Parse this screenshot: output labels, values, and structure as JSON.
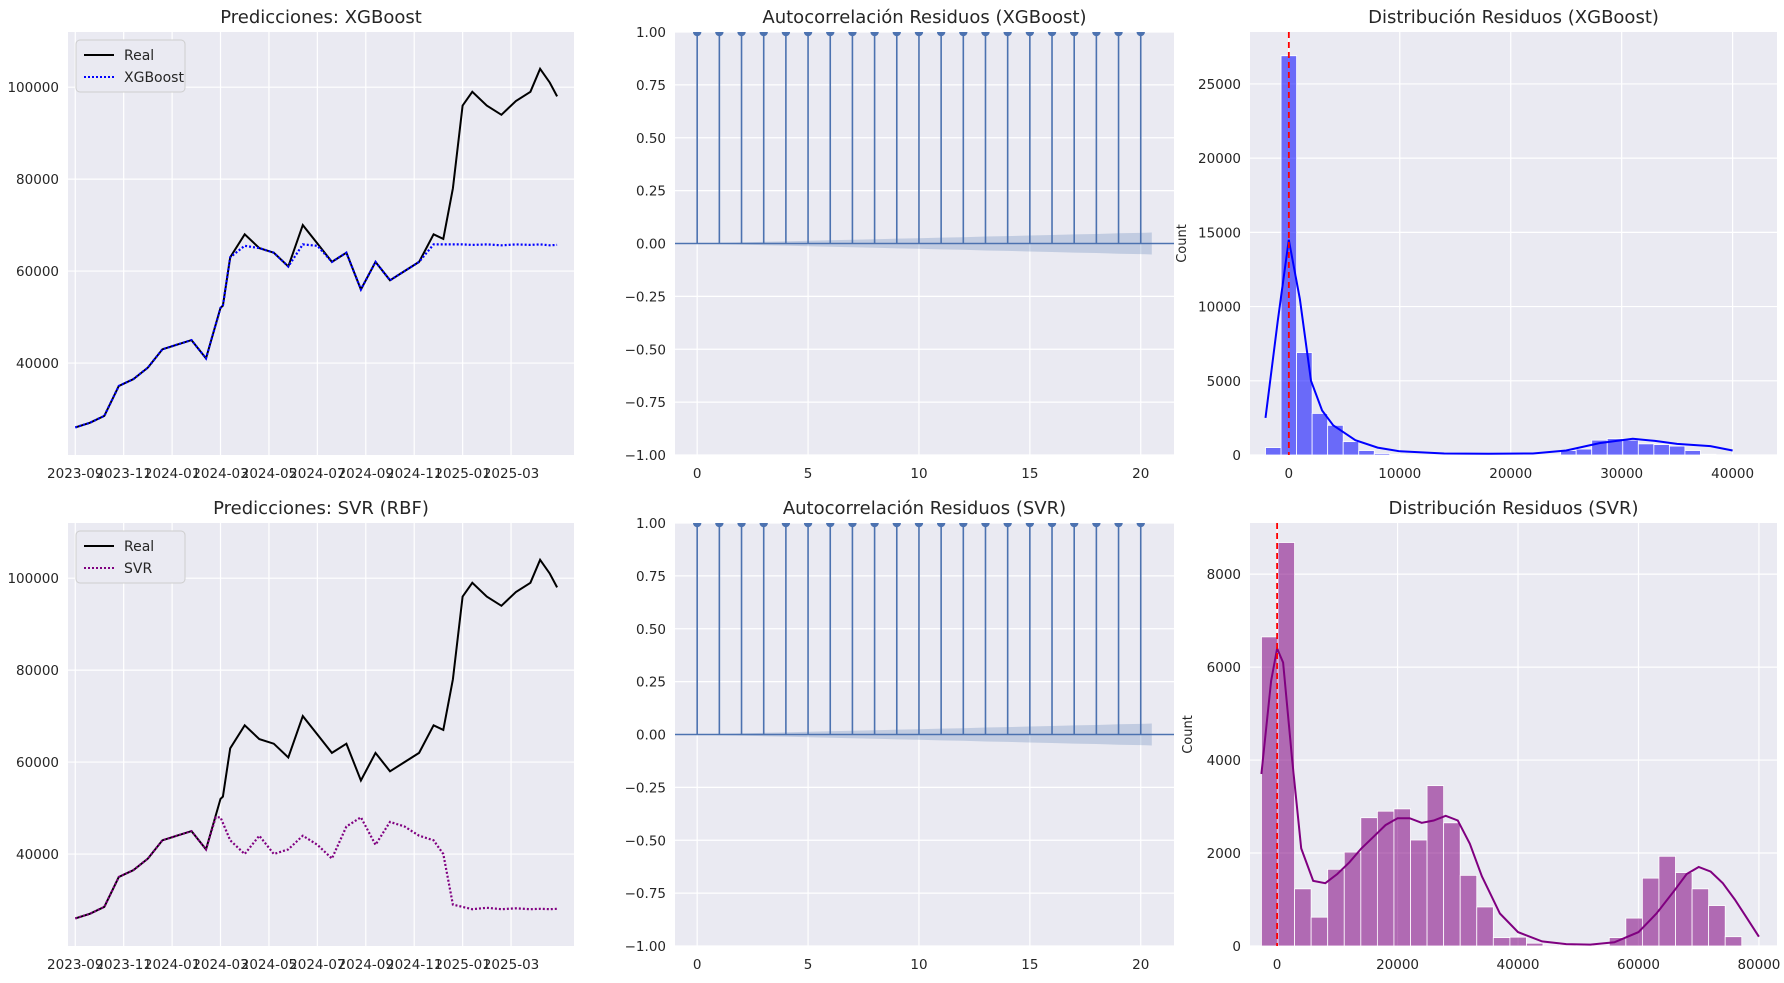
{
  "colors": {
    "panel_bg": "#eaeaf2",
    "grid": "#ffffff",
    "real": "#000000",
    "xgb": "#0000ff",
    "svr": "#800080",
    "acf": "#4c72b0",
    "zero_line": "#ff0000"
  },
  "chart_data": [
    {
      "id": "pred_xgb",
      "type": "line",
      "title": "Predicciones: XGBoost",
      "x_tick_labels": [
        "2023-09",
        "2023-11",
        "2024-01",
        "2024-03",
        "2024-05",
        "2024-07",
        "2024-09",
        "2024-11",
        "2025-01",
        "2025-03"
      ],
      "xlim": [
        -0.15,
        10.3
      ],
      "ylim": [
        20000,
        112000
      ],
      "y_ticks": [
        40000,
        60000,
        80000,
        100000
      ],
      "legend": [
        "Real",
        "XGBoost"
      ],
      "legend_loc": "upper left",
      "series": [
        {
          "name": "Real",
          "role": "real",
          "x": [
            0.0,
            0.3,
            0.6,
            0.9,
            1.2,
            1.5,
            1.8,
            2.1,
            2.4,
            2.7,
            3.0,
            3.05,
            3.2,
            3.5,
            3.8,
            4.1,
            4.4,
            4.7,
            5.0,
            5.3,
            5.6,
            5.9,
            6.2,
            6.5,
            6.8,
            7.1,
            7.4,
            7.6,
            7.8,
            8.0,
            8.2,
            8.5,
            8.8,
            9.1,
            9.4,
            9.6,
            9.8,
            9.95
          ],
          "y": [
            26000,
            27000,
            28500,
            35000,
            36500,
            39000,
            43000,
            44000,
            45000,
            41000,
            52000,
            52500,
            63000,
            68000,
            65000,
            64000,
            61000,
            70000,
            66000,
            62000,
            64000,
            56000,
            62000,
            58000,
            60000,
            62000,
            68000,
            67000,
            78000,
            96000,
            99000,
            96000,
            94000,
            97000,
            99000,
            104000,
            101000,
            98000
          ]
        },
        {
          "name": "XGBoost",
          "role": "pred",
          "x": [
            0.0,
            0.3,
            0.6,
            0.9,
            1.2,
            1.5,
            1.8,
            2.1,
            2.4,
            2.7,
            3.0,
            3.05,
            3.2,
            3.5,
            3.8,
            4.1,
            4.4,
            4.7,
            5.0,
            5.3,
            5.6,
            5.9,
            6.2,
            6.5,
            6.8,
            7.1,
            7.4,
            7.6,
            7.8,
            8.0,
            8.2,
            8.5,
            8.8,
            9.1,
            9.4,
            9.6,
            9.8,
            9.95
          ],
          "y": [
            26000,
            27000,
            28500,
            35000,
            36500,
            39000,
            43000,
            44000,
            45000,
            41000,
            52000,
            52500,
            63000,
            65500,
            65000,
            64000,
            61000,
            65800,
            65500,
            62000,
            64000,
            56000,
            62000,
            58000,
            60000,
            62000,
            65800,
            65800,
            65800,
            65800,
            65700,
            65800,
            65600,
            65800,
            65700,
            65800,
            65600,
            65700
          ]
        }
      ]
    },
    {
      "id": "acf_xgb",
      "type": "stem",
      "title": "Autocorrelación Residuos (XGBoost)",
      "xlim": [
        -1,
        21.5
      ],
      "ylim": [
        -1.0,
        1.0
      ],
      "x_ticks": [
        0,
        5,
        10,
        15,
        20
      ],
      "y_ticks": [
        -1.0,
        -0.75,
        -0.5,
        -0.25,
        0.0,
        0.25,
        0.5,
        0.75,
        1.0
      ],
      "y_tick_labels": [
        "−1.00",
        "−0.75",
        "−0.50",
        "−0.25",
        "0.00",
        "0.25",
        "0.50",
        "0.75",
        "1.00"
      ],
      "lags": [
        0,
        1,
        2,
        3,
        4,
        5,
        6,
        7,
        8,
        9,
        10,
        11,
        12,
        13,
        14,
        15,
        16,
        17,
        18,
        19,
        20
      ],
      "values": [
        1,
        1,
        1,
        1,
        1,
        1,
        1,
        1,
        1,
        1,
        1,
        1,
        1,
        1,
        1,
        1,
        1,
        1,
        1,
        1,
        1
      ],
      "confint_upper": [
        0.0,
        0.003,
        0.005,
        0.008,
        0.01,
        0.013,
        0.015,
        0.018,
        0.02,
        0.023,
        0.025,
        0.028,
        0.03,
        0.033,
        0.035,
        0.038,
        0.04,
        0.043,
        0.045,
        0.048,
        0.05,
        0.052
      ],
      "confint_x": [
        0,
        1,
        2,
        3,
        4,
        5,
        6,
        7,
        8,
        9,
        10,
        11,
        12,
        13,
        14,
        15,
        16,
        17,
        18,
        19,
        20,
        20.5
      ]
    },
    {
      "id": "dist_xgb",
      "type": "histogram",
      "title": "Distribución Residuos (XGBoost)",
      "ylabel": "Count",
      "xlim": [
        -3500,
        44000
      ],
      "ylim": [
        0,
        28500
      ],
      "x_ticks": [
        0,
        10000,
        20000,
        30000,
        40000
      ],
      "y_ticks": [
        0,
        5000,
        10000,
        15000,
        20000,
        25000
      ],
      "bin_start": -2100,
      "bin_width": 1400,
      "counts": [
        500,
        26900,
        6900,
        2800,
        2000,
        900,
        300,
        100,
        50,
        0,
        0,
        0,
        0,
        0,
        0,
        0,
        0,
        0,
        0,
        300,
        400,
        1000,
        1100,
        1000,
        750,
        700,
        600,
        300,
        50
      ],
      "kde_x": [
        -2100,
        -1000,
        0,
        1000,
        2000,
        3000,
        4000,
        6000,
        8000,
        10000,
        14000,
        18000,
        22000,
        25000,
        28000,
        31000,
        33000,
        35000,
        38000,
        40000
      ],
      "kde_y": [
        2500,
        9000,
        14500,
        10500,
        5000,
        3000,
        2000,
        1000,
        500,
        250,
        100,
        80,
        100,
        300,
        800,
        1100,
        950,
        750,
        600,
        300
      ]
    },
    {
      "id": "pred_svr",
      "type": "line",
      "title": "Predicciones: SVR (RBF)",
      "x_tick_labels": [
        "2023-09",
        "2023-11",
        "2024-01",
        "2024-03",
        "2024-05",
        "2024-07",
        "2024-09",
        "2024-11",
        "2025-01",
        "2025-03"
      ],
      "xlim": [
        -0.15,
        10.3
      ],
      "ylim": [
        20000,
        112000
      ],
      "y_ticks": [
        40000,
        60000,
        80000,
        100000
      ],
      "legend": [
        "Real",
        "SVR"
      ],
      "legend_loc": "upper left",
      "series": [
        {
          "name": "Real",
          "role": "real",
          "x": [
            0.0,
            0.3,
            0.6,
            0.9,
            1.2,
            1.5,
            1.8,
            2.1,
            2.4,
            2.7,
            3.0,
            3.05,
            3.2,
            3.5,
            3.8,
            4.1,
            4.4,
            4.7,
            5.0,
            5.3,
            5.6,
            5.9,
            6.2,
            6.5,
            6.8,
            7.1,
            7.4,
            7.6,
            7.8,
            8.0,
            8.2,
            8.5,
            8.8,
            9.1,
            9.4,
            9.6,
            9.8,
            9.95
          ],
          "y": [
            26000,
            27000,
            28500,
            35000,
            36500,
            39000,
            43000,
            44000,
            45000,
            41000,
            52000,
            52500,
            63000,
            68000,
            65000,
            64000,
            61000,
            70000,
            66000,
            62000,
            64000,
            56000,
            62000,
            58000,
            60000,
            62000,
            68000,
            67000,
            78000,
            96000,
            99000,
            96000,
            94000,
            97000,
            99000,
            104000,
            101000,
            98000
          ]
        },
        {
          "name": "SVR",
          "role": "pred",
          "x": [
            0.0,
            0.3,
            0.6,
            0.9,
            1.2,
            1.5,
            1.8,
            2.1,
            2.4,
            2.7,
            2.9,
            3.0,
            3.2,
            3.5,
            3.8,
            4.1,
            4.4,
            4.7,
            5.0,
            5.3,
            5.6,
            5.9,
            6.2,
            6.5,
            6.8,
            7.1,
            7.4,
            7.6,
            7.8,
            8.0,
            8.2,
            8.5,
            8.8,
            9.1,
            9.4,
            9.6,
            9.8,
            9.95
          ],
          "y": [
            26000,
            27000,
            28500,
            35000,
            36500,
            39000,
            43000,
            44000,
            45000,
            41000,
            48000,
            48000,
            43000,
            40000,
            44000,
            40000,
            41000,
            44000,
            42000,
            39000,
            46000,
            48000,
            42000,
            47000,
            46000,
            44000,
            43000,
            40000,
            29000,
            28500,
            28000,
            28300,
            28000,
            28200,
            28000,
            28100,
            28000,
            28100
          ]
        }
      ]
    },
    {
      "id": "acf_svr",
      "type": "stem",
      "title": "Autocorrelación Residuos (SVR)",
      "xlim": [
        -1,
        21.5
      ],
      "ylim": [
        -1.0,
        1.0
      ],
      "x_ticks": [
        0,
        5,
        10,
        15,
        20
      ],
      "y_ticks": [
        -1.0,
        -0.75,
        -0.5,
        -0.25,
        0.0,
        0.25,
        0.5,
        0.75,
        1.0
      ],
      "y_tick_labels": [
        "−1.00",
        "−0.75",
        "−0.50",
        "−0.25",
        "0.00",
        "0.25",
        "0.50",
        "0.75",
        "1.00"
      ],
      "lags": [
        0,
        1,
        2,
        3,
        4,
        5,
        6,
        7,
        8,
        9,
        10,
        11,
        12,
        13,
        14,
        15,
        16,
        17,
        18,
        19,
        20
      ],
      "values": [
        1,
        1,
        1,
        1,
        1,
        1,
        1,
        1,
        1,
        1,
        1,
        1,
        1,
        1,
        1,
        1,
        1,
        1,
        1,
        1,
        1
      ],
      "confint_upper": [
        0.0,
        0.003,
        0.005,
        0.008,
        0.01,
        0.013,
        0.015,
        0.018,
        0.02,
        0.023,
        0.025,
        0.028,
        0.03,
        0.033,
        0.035,
        0.038,
        0.04,
        0.043,
        0.045,
        0.048,
        0.05,
        0.052
      ],
      "confint_x": [
        0,
        1,
        2,
        3,
        4,
        5,
        6,
        7,
        8,
        9,
        10,
        11,
        12,
        13,
        14,
        15,
        16,
        17,
        18,
        19,
        20,
        20.5
      ]
    },
    {
      "id": "dist_svr",
      "type": "histogram",
      "title": "Distribución Residuos (SVR)",
      "ylabel": "Count",
      "xlim": [
        -4500,
        83000
      ],
      "ylim": [
        0,
        9100
      ],
      "x_ticks": [
        0,
        20000,
        40000,
        60000,
        80000
      ],
      "y_ticks": [
        0,
        2000,
        4000,
        6000,
        8000
      ],
      "bin_start": -2600,
      "bin_width": 2750,
      "counts": [
        6650,
        8680,
        1230,
        620,
        1650,
        2020,
        2760,
        2900,
        2950,
        2280,
        3450,
        2650,
        1520,
        840,
        180,
        190,
        60,
        20,
        20,
        0,
        20,
        180,
        600,
        1460,
        1930,
        1580,
        1230,
        870,
        200
      ],
      "kde_x": [
        -2600,
        -1000,
        0,
        1000,
        2500,
        4000,
        6000,
        8000,
        10000,
        12000,
        14000,
        16000,
        18000,
        20000,
        22000,
        24000,
        26000,
        28000,
        30000,
        32000,
        34000,
        37000,
        40000,
        44000,
        48000,
        52000,
        56000,
        60000,
        63000,
        66000,
        68000,
        70000,
        72000,
        74000,
        76000,
        78000,
        80000
      ],
      "kde_y": [
        3700,
        5700,
        6400,
        6100,
        4000,
        2100,
        1400,
        1350,
        1550,
        1800,
        2100,
        2350,
        2600,
        2750,
        2750,
        2650,
        2700,
        2800,
        2700,
        2200,
        1500,
        700,
        300,
        100,
        40,
        30,
        80,
        300,
        700,
        1200,
        1550,
        1700,
        1600,
        1350,
        1000,
        600,
        200
      ]
    }
  ]
}
